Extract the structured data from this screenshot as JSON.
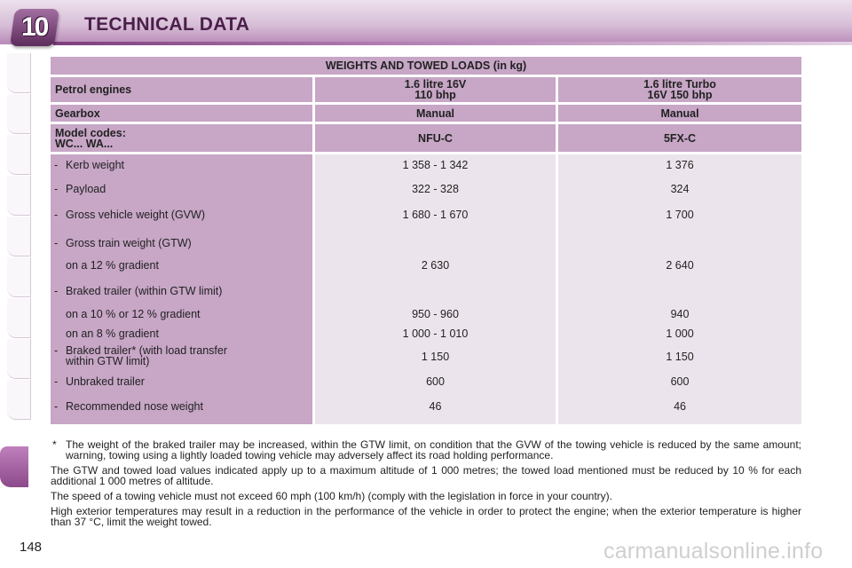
{
  "header": {
    "chapter": "10",
    "title": "TECHNICAL DATA"
  },
  "table": {
    "title": "WEIGHTS AND TOWED LOADS (in kg)",
    "rows": {
      "engines": {
        "label": "Petrol engines",
        "col1": [
          "1.6 litre 16V",
          "110 bhp"
        ],
        "col2": [
          "1.6 litre Turbo",
          "16V 150 bhp"
        ]
      },
      "gearbox": {
        "label": "Gearbox",
        "col1": "Manual",
        "col2": "Manual"
      },
      "codes": {
        "label": [
          "Model codes:",
          "WC... WA..."
        ],
        "col1": "NFU-C",
        "col2": "5FX-C"
      }
    },
    "body": [
      {
        "dash": "-",
        "label": "Kerb weight",
        "v1": "1 358 - 1 342",
        "v2": "1 376"
      },
      {
        "dash": "-",
        "label": "Payload",
        "v1": "322 - 328",
        "v2": "324"
      },
      {
        "dash": "-",
        "label": "Gross vehicle weight (GVW)",
        "v1": "1 680 - 1 670",
        "v2": "1 700"
      },
      {
        "dash": "-",
        "label": "Gross train weight (GTW)",
        "v1": "",
        "v2": ""
      },
      {
        "dash": "",
        "label": "on a 12 % gradient",
        "v1": "2 630",
        "v2": "2 640"
      },
      {
        "dash": "-",
        "label": "Braked trailer (within GTW limit)",
        "v1": "",
        "v2": ""
      },
      {
        "dash": "",
        "label": "on a 10 % or 12 % gradient",
        "v1": "950 - 960",
        "v2": "940"
      },
      {
        "dash": "",
        "label": "on an 8 % gradient",
        "v1": "1 000 - 1 010",
        "v2": "1 000"
      },
      {
        "dash": "-",
        "label": "Braked trailer* (with load transfer",
        "label2": "within GTW limit)",
        "v1": "1 150",
        "v2": "1 150"
      },
      {
        "dash": "-",
        "label": "Unbraked trailer",
        "v1": "600",
        "v2": "600"
      },
      {
        "dash": "-",
        "label": "Recommended nose weight",
        "v1": "46",
        "v2": "46"
      }
    ]
  },
  "notes": {
    "star": "*",
    "footnote": "The weight of the braked trailer may be increased, within the GTW limit, on condition that the GVW of the towing vehicle is reduced by the same amount; warning, towing using a lightly loaded towing vehicle may adversely affect its road holding performance.",
    "p1": "The GTW and towed load values indicated apply up to a maximum altitude of 1 000 metres; the towed load mentioned must be reduced by 10 % for each additional 1 000 metres of altitude.",
    "p2": "The speed of a towing vehicle must not exceed 60 mph (100 km/h) (comply with the legislation in force in your country).",
    "p3": "High exterior temperatures may result in a reduction in the performance of the vehicle in order to protect the engine; when the exterior temperature is higher than 37 °C, limit the weight towed."
  },
  "page_number": "148",
  "watermark": "carmanualsonline.info",
  "colors": {
    "accent": "#c7a6c6",
    "cell_light": "#ece4ec",
    "heading": "#4a1f4a"
  }
}
